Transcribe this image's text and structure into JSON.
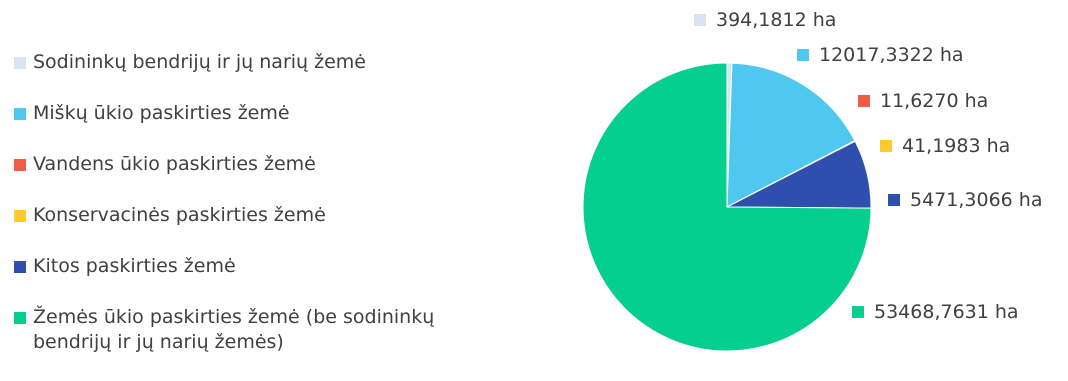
{
  "chart_data": {
    "type": "pie",
    "title": "",
    "legend_position": "left",
    "slices": [
      {
        "label": "Sodininkų bendrijų ir jų narių žemė",
        "value": 394.1812,
        "display": "394,1812 ha",
        "color": "#dae3f3"
      },
      {
        "label": "Miškų ūkio paskirties žemė",
        "value": 12017.3322,
        "display": "12017,3322 ha",
        "color": "#4fc8f0"
      },
      {
        "label": "Vandens ūkio paskirties žemė",
        "value": 11.627,
        "display": "11,6270 ha",
        "color": "#f25c47"
      },
      {
        "label": "Konservacinės paskirties žemė",
        "value": 41.1983,
        "display": "41,1983 ha",
        "color": "#ffc92e"
      },
      {
        "label": "Kitos paskirties žemė",
        "value": 5471.3066,
        "display": "5471,3066 ha",
        "color": "#2f4fae"
      },
      {
        "label": "Žemės ūkio paskirties žemė (be sodininkų\nbendrijų ir jų narių žemės)",
        "value": 53468.7631,
        "display": "53468,7631 ha",
        "color": "#05cf8f"
      }
    ]
  }
}
